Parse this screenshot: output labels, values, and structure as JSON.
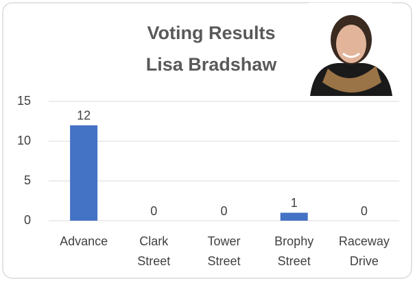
{
  "chart_data": {
    "type": "bar",
    "title": "Voting Results",
    "subtitle": "Lisa Bradshaw",
    "categories": [
      "Advance",
      "Clark Street",
      "Tower Street",
      "Brophy Street",
      "Raceway Drive"
    ],
    "values": [
      12,
      0,
      0,
      1,
      0
    ],
    "color": "#4472c4",
    "ylim": [
      0,
      15
    ],
    "yticks": [
      0,
      5,
      10,
      15
    ],
    "grid": true
  }
}
